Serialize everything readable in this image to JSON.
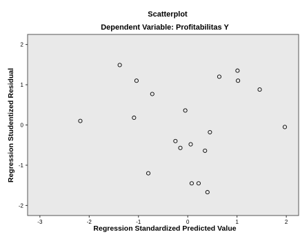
{
  "chart_data": {
    "type": "scatter",
    "title": "Scatterplot",
    "subtitle": "Dependent Variable: Profitabilitas Y",
    "xlabel": "Regression Standardized Predicted Value",
    "ylabel": "Regression Studentized Residual",
    "xlim": [
      -3.25,
      2.25
    ],
    "ylim": [
      -2.25,
      2.25
    ],
    "xticks": [
      -3,
      -2,
      -1,
      0,
      1,
      2
    ],
    "yticks": [
      -2,
      -1,
      0,
      1,
      2
    ],
    "grid": false,
    "colors": {
      "plot_background": "#e9e9e9",
      "plot_border": "#555555",
      "marker_stroke": "#000000"
    },
    "points": [
      {
        "x": -2.18,
        "y": 0.1
      },
      {
        "x": -1.38,
        "y": 1.49
      },
      {
        "x": -1.04,
        "y": 1.1
      },
      {
        "x": -1.09,
        "y": 0.18
      },
      {
        "x": -0.72,
        "y": 0.77
      },
      {
        "x": -0.8,
        "y": -1.2
      },
      {
        "x": -0.25,
        "y": -0.4
      },
      {
        "x": -0.15,
        "y": -0.57
      },
      {
        "x": -0.05,
        "y": 0.36
      },
      {
        "x": 0.06,
        "y": -0.48
      },
      {
        "x": 0.08,
        "y": -1.45
      },
      {
        "x": 0.22,
        "y": -1.45
      },
      {
        "x": 0.35,
        "y": -0.64
      },
      {
        "x": 0.4,
        "y": -1.67
      },
      {
        "x": 0.45,
        "y": -0.18
      },
      {
        "x": 0.64,
        "y": 1.2
      },
      {
        "x": 1.01,
        "y": 1.35
      },
      {
        "x": 1.02,
        "y": 1.1
      },
      {
        "x": 1.46,
        "y": 0.88
      },
      {
        "x": 1.97,
        "y": -0.05
      }
    ]
  }
}
